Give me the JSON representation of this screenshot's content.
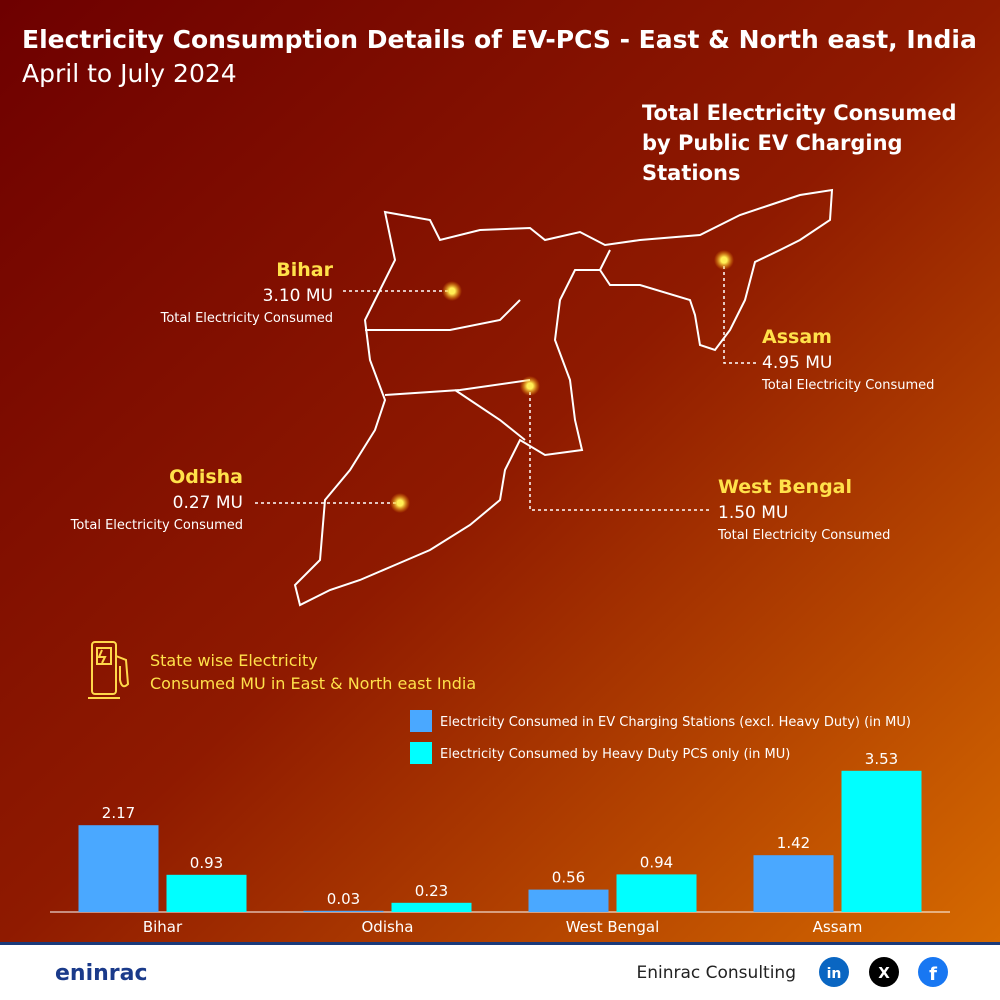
{
  "title": "Electricity Consumption Details of EV-PCS - East & North east, India",
  "subtitle": "April to July 2024",
  "map_heading": "Total Electricity Consumed by Public EV Charging Stations",
  "annotations": [
    {
      "name": "Bihar",
      "value": "3.10  MU",
      "caption": "Total Electricity Consumed"
    },
    {
      "name": "Assam",
      "value": "4.95 MU",
      "caption": "Total Electricity Consumed"
    },
    {
      "name": "Odisha",
      "value": "0.27 MU",
      "caption": "Total Electricity Consumed"
    },
    {
      "name": "West Bengal",
      "value": "1.50 MU",
      "caption": "Total Electricity Consumed"
    }
  ],
  "chart_data": {
    "type": "bar",
    "title": "State wise Electricity Consumed MU in East & North east India",
    "categories": [
      "Bihar",
      "Odisha",
      "West Bengal",
      "Assam"
    ],
    "series": [
      {
        "name": "Electricity Consumed in EV Charging Stations (excl. Heavy Duty) (in MU)",
        "color": "#4aa8ff",
        "values": [
          2.17,
          0.03,
          0.56,
          1.42
        ]
      },
      {
        "name": "Electricity Consumed by Heavy Duty PCS only (in MU)",
        "color": "#00ffff",
        "values": [
          0.93,
          0.23,
          0.94,
          3.53
        ]
      }
    ]
  },
  "footer": {
    "company": "Eninrac Consulting",
    "logo": "eninrac"
  }
}
